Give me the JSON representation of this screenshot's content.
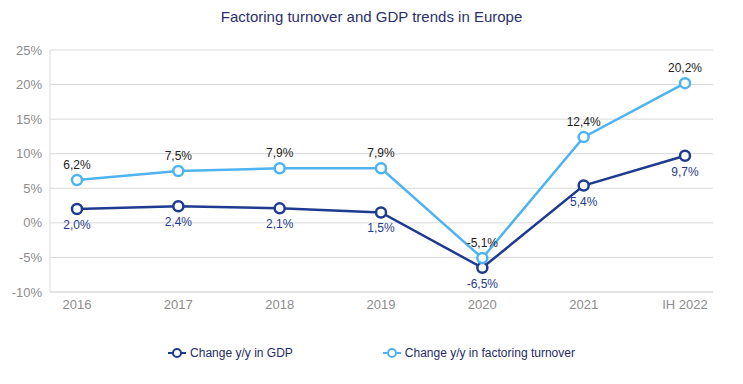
{
  "chart_data": {
    "type": "line",
    "title": "Factoring turnover and GDP trends in Europe",
    "categories": [
      "2016",
      "2017",
      "2018",
      "2019",
      "2020",
      "2021",
      "IH 2022"
    ],
    "series": [
      {
        "name": "Change y/y in GDP",
        "color": "#1f3b8f",
        "marker": "circle",
        "values": [
          2.0,
          2.4,
          2.1,
          1.5,
          -6.5,
          5.4,
          9.7
        ],
        "value_labels": [
          "2,0%",
          "2,4%",
          "2,1%",
          "1,5%",
          "-6,5%",
          "5,4%",
          "9,7%"
        ]
      },
      {
        "name": "Change y/y in factoring turnover",
        "color": "#4fb3f0",
        "marker": "circle",
        "values": [
          6.2,
          7.5,
          7.9,
          7.9,
          -5.1,
          12.4,
          20.2
        ],
        "value_labels": [
          "6,2%",
          "7,5%",
          "7,9%",
          "7,9%",
          "-5,1%",
          "12,4%",
          "20,2%"
        ]
      }
    ],
    "ylim": [
      -10,
      25
    ],
    "yticks": [
      {
        "value": -10,
        "label": "-10%"
      },
      {
        "value": -5,
        "label": "-5%"
      },
      {
        "value": 0,
        "label": "0%"
      },
      {
        "value": 5,
        "label": "5%"
      },
      {
        "value": 10,
        "label": "10%"
      },
      {
        "value": 15,
        "label": "15%"
      },
      {
        "value": 20,
        "label": "20%"
      },
      {
        "value": 25,
        "label": "25%"
      }
    ],
    "grid": true,
    "legend": "bottom",
    "data_labels": true
  }
}
